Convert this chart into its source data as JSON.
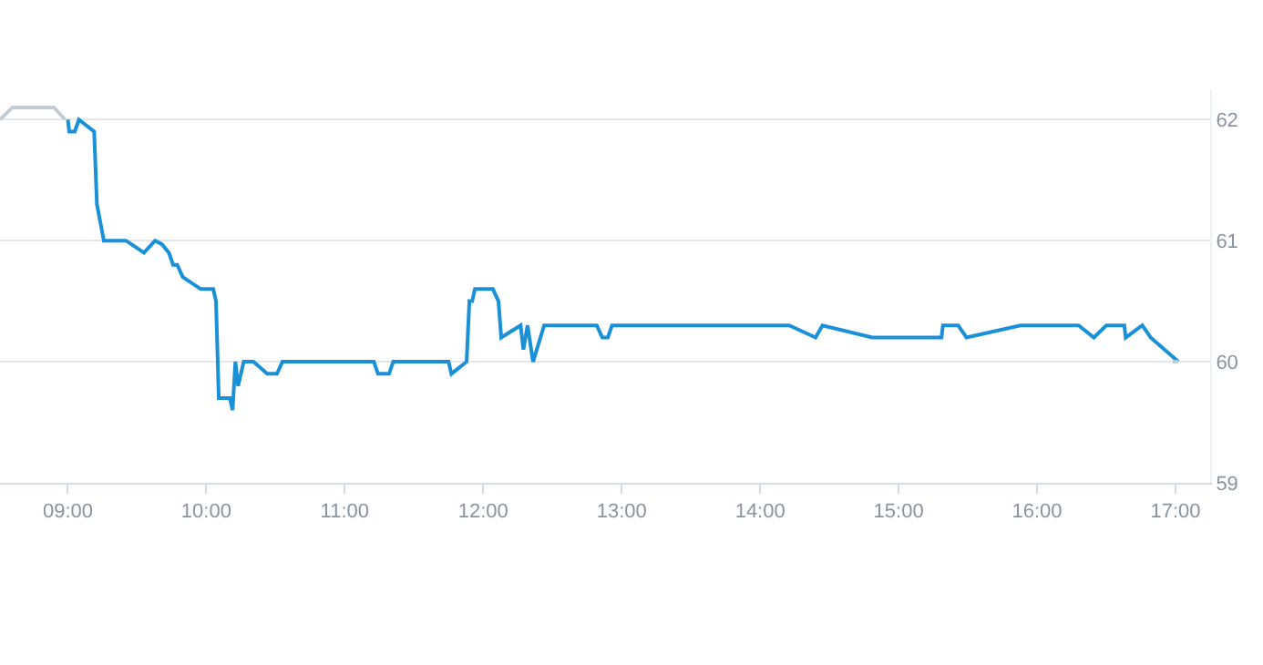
{
  "chart_data": {
    "type": "line",
    "xlim": [
      8.51,
      17.25
    ],
    "xticks": [
      {
        "value": 9,
        "label": "09:00"
      },
      {
        "value": 10,
        "label": "10:00"
      },
      {
        "value": 11,
        "label": "11:00"
      },
      {
        "value": 12,
        "label": "12:00"
      },
      {
        "value": 13,
        "label": "13:00"
      },
      {
        "value": 14,
        "label": "14:00"
      },
      {
        "value": 15,
        "label": "15:00"
      },
      {
        "value": 16,
        "label": "16:00"
      },
      {
        "value": 17,
        "label": "17:00"
      }
    ],
    "ylim": [
      59,
      62.25
    ],
    "yticks": [
      59,
      60,
      61,
      62
    ],
    "grid": "y",
    "marker": "none",
    "line_style": "solid",
    "series": [
      {
        "color": "#c3cbd3",
        "x": [
          8.51,
          8.6,
          8.9,
          8.98
        ],
        "values": [
          62.0,
          62.1,
          62.1,
          62.0
        ]
      },
      {
        "color": "#1a90d8",
        "x": [
          9.0,
          9.01,
          9.05,
          9.08,
          9.19,
          9.21,
          9.26,
          9.42,
          9.55,
          9.63,
          9.68,
          9.73,
          9.76,
          9.79,
          9.83,
          9.96,
          10.05,
          10.07,
          10.09,
          10.17,
          10.19,
          10.21,
          10.23,
          10.27,
          10.34,
          10.44,
          10.51,
          10.55,
          11.21,
          11.24,
          11.32,
          11.35,
          11.75,
          11.77,
          11.88,
          11.9,
          11.92,
          11.94,
          12.07,
          12.11,
          12.13,
          12.27,
          12.29,
          12.32,
          12.36,
          12.44,
          12.82,
          12.86,
          12.9,
          12.93,
          14.21,
          14.4,
          14.45,
          14.81,
          15.31,
          15.32,
          15.43,
          15.49,
          15.88,
          16.3,
          16.41,
          16.5,
          16.63,
          16.64,
          16.76,
          16.82,
          17.02
        ],
        "values": [
          62.0,
          61.9,
          61.9,
          62.0,
          61.9,
          61.3,
          61.0,
          61.0,
          60.9,
          61.0,
          60.97,
          60.9,
          60.8,
          60.8,
          60.7,
          60.6,
          60.6,
          60.5,
          59.7,
          59.7,
          59.6,
          60.0,
          59.8,
          60.0,
          60.0,
          59.9,
          59.9,
          60.0,
          60.0,
          59.9,
          59.9,
          60.0,
          60.0,
          59.9,
          60.0,
          60.5,
          60.5,
          60.6,
          60.6,
          60.5,
          60.2,
          60.3,
          60.1,
          60.3,
          60.0,
          60.3,
          60.3,
          60.2,
          60.2,
          60.3,
          60.3,
          60.2,
          60.3,
          60.2,
          60.2,
          60.3,
          60.3,
          60.2,
          60.3,
          60.3,
          60.2,
          60.3,
          60.3,
          60.2,
          60.3,
          60.2,
          60.0
        ]
      },
      {
        "color": "#c3cbd3",
        "x": [
          16.98,
          17.02
        ],
        "values": [
          60.0,
          60.0
        ]
      }
    ]
  }
}
